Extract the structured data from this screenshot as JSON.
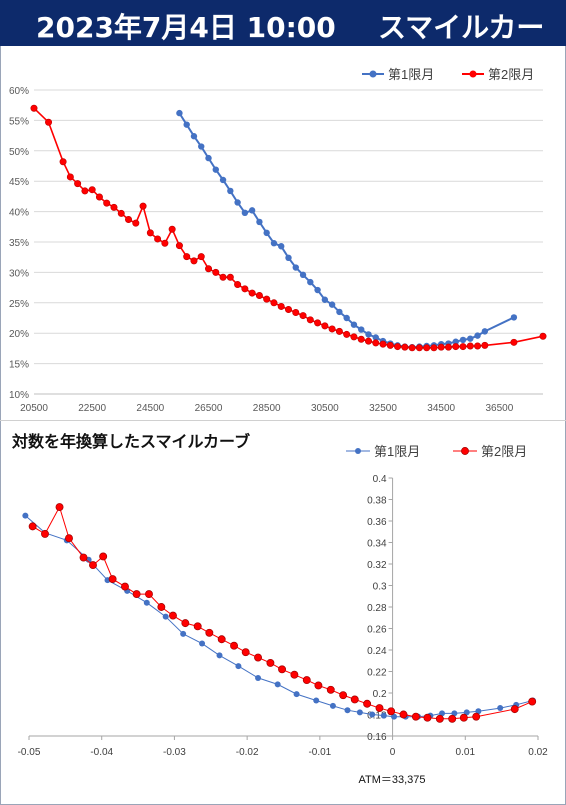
{
  "header": {
    "date": "2023年7月4日 10:00",
    "title": "スマイルカーブ"
  },
  "colors": {
    "series1": "#4472c4",
    "series2": "#ff0000",
    "header_bg": "#0d2a6b"
  },
  "chart_data": [
    {
      "type": "line",
      "title": "",
      "legend_position": "top-right",
      "xlim": [
        20500,
        38000
      ],
      "ylim": [
        0.1,
        0.6
      ],
      "x_ticks": [
        20500,
        22500,
        24500,
        26500,
        28500,
        30500,
        32500,
        34500,
        36500
      ],
      "x_tick_labels": [
        "20500",
        "22500",
        "24500",
        "26500",
        "28500",
        "30500",
        "32500",
        "34500",
        "36500"
      ],
      "y_ticks": [
        0.1,
        0.15,
        0.2,
        0.25,
        0.3,
        0.35,
        0.4,
        0.45,
        0.5,
        0.55,
        0.6
      ],
      "y_tick_labels": [
        "10%",
        "15%",
        "20%",
        "25%",
        "30%",
        "35%",
        "40%",
        "45%",
        "50%",
        "55%",
        "60%"
      ],
      "grid": true,
      "series": [
        {
          "name": "第1限月",
          "x": [
            25500,
            25750,
            26000,
            26250,
            26500,
            26750,
            27000,
            27250,
            27500,
            27750,
            28000,
            28250,
            28500,
            28750,
            29000,
            29250,
            29500,
            29750,
            30000,
            30250,
            30500,
            30750,
            31000,
            31250,
            31500,
            31750,
            32000,
            32250,
            32500,
            32750,
            33000,
            33250,
            33500,
            33750,
            34000,
            34250,
            34500,
            34750,
            35000,
            35250,
            35500,
            35750,
            36000,
            37000
          ],
          "y": [
            0.562,
            0.543,
            0.524,
            0.507,
            0.488,
            0.469,
            0.452,
            0.434,
            0.415,
            0.398,
            0.402,
            0.383,
            0.365,
            0.348,
            0.343,
            0.324,
            0.308,
            0.296,
            0.284,
            0.271,
            0.255,
            0.247,
            0.235,
            0.225,
            0.214,
            0.206,
            0.198,
            0.193,
            0.187,
            0.183,
            0.18,
            0.178,
            0.177,
            0.178,
            0.179,
            0.18,
            0.182,
            0.183,
            0.186,
            0.189,
            0.191,
            0.196,
            0.203,
            0.226
          ]
        },
        {
          "name": "第2限月",
          "x": [
            20500,
            21000,
            21500,
            21750,
            22000,
            22250,
            22500,
            22750,
            23000,
            23250,
            23500,
            23750,
            24000,
            24250,
            24500,
            24750,
            25000,
            25250,
            25500,
            25750,
            26000,
            26250,
            26500,
            26750,
            27000,
            27250,
            27500,
            27750,
            28000,
            28250,
            28500,
            28750,
            29000,
            29250,
            29500,
            29750,
            30000,
            30250,
            30500,
            30750,
            31000,
            31250,
            31500,
            31750,
            32000,
            32250,
            32500,
            32750,
            33000,
            33250,
            33500,
            33750,
            34000,
            34250,
            34500,
            34750,
            35000,
            35250,
            35500,
            35750,
            36000,
            37000,
            38000
          ],
          "y": [
            0.57,
            0.547,
            0.482,
            0.457,
            0.446,
            0.434,
            0.436,
            0.424,
            0.414,
            0.407,
            0.397,
            0.387,
            0.381,
            0.409,
            0.365,
            0.355,
            0.348,
            0.371,
            0.344,
            0.326,
            0.319,
            0.326,
            0.306,
            0.3,
            0.292,
            0.292,
            0.28,
            0.273,
            0.266,
            0.262,
            0.256,
            0.25,
            0.244,
            0.239,
            0.234,
            0.229,
            0.222,
            0.217,
            0.212,
            0.207,
            0.203,
            0.198,
            0.194,
            0.19,
            0.187,
            0.184,
            0.182,
            0.18,
            0.178,
            0.177,
            0.176,
            0.176,
            0.176,
            0.176,
            0.177,
            0.177,
            0.178,
            0.178,
            0.179,
            0.179,
            0.18,
            0.185,
            0.195
          ]
        }
      ]
    },
    {
      "type": "line",
      "title": "対数を年換算したスマイルカーブ",
      "legend_position": "top-right",
      "xlim": [
        -0.05,
        0.02
      ],
      "ylim": [
        0.16,
        0.4
      ],
      "x_ticks": [
        -0.05,
        -0.04,
        -0.03,
        -0.02,
        -0.01,
        0,
        0.01,
        0.02
      ],
      "x_tick_labels": [
        "-0.05",
        "-0.04",
        "-0.03",
        "-0.02",
        "-0.01",
        "0",
        "0.01",
        "0.02"
      ],
      "y_ticks": [
        0.16,
        0.18,
        0.2,
        0.22,
        0.24,
        0.26,
        0.28,
        0.3,
        0.32,
        0.34,
        0.36,
        0.38,
        0.4
      ],
      "y_tick_labels": [
        "0.16",
        "0.18",
        "0.2",
        "0.22",
        "0.24",
        "0.26",
        "0.28",
        "0.3",
        "0.32",
        "0.34",
        "0.36",
        "0.38",
        "0.4"
      ],
      "grid": false,
      "annotation": "ATM＝33,375",
      "series": [
        {
          "name": "第1限月",
          "x": [
            -0.0505,
            -0.0478,
            -0.0448,
            -0.0418,
            -0.0392,
            -0.0365,
            -0.0338,
            -0.0312,
            -0.0288,
            -0.0262,
            -0.0238,
            -0.0212,
            -0.0185,
            -0.0158,
            -0.0132,
            -0.0105,
            -0.0082,
            -0.0062,
            -0.0045,
            -0.0028,
            -0.0012,
            0.0002,
            0.0018,
            0.0035,
            0.0052,
            0.0068,
            0.0085,
            0.0102,
            0.0118,
            0.0148,
            0.017,
            0.0193
          ],
          "y": [
            0.365,
            0.349,
            0.342,
            0.324,
            0.305,
            0.295,
            0.284,
            0.271,
            0.255,
            0.246,
            0.235,
            0.225,
            0.214,
            0.208,
            0.199,
            0.193,
            0.188,
            0.184,
            0.182,
            0.18,
            0.179,
            0.178,
            0.178,
            0.178,
            0.179,
            0.181,
            0.181,
            0.182,
            0.183,
            0.186,
            0.189,
            0.193
          ]
        },
        {
          "name": "第2限月",
          "x": [
            -0.0495,
            -0.0478,
            -0.0458,
            -0.0445,
            -0.0425,
            -0.0412,
            -0.0398,
            -0.0385,
            -0.0368,
            -0.0352,
            -0.0335,
            -0.0318,
            -0.0302,
            -0.0285,
            -0.0268,
            -0.0252,
            -0.0235,
            -0.0218,
            -0.0202,
            -0.0185,
            -0.0168,
            -0.0152,
            -0.0135,
            -0.0118,
            -0.0102,
            -0.0085,
            -0.0068,
            -0.0052,
            -0.0035,
            -0.0018,
            -0.0002,
            0.0015,
            0.0032,
            0.0048,
            0.0065,
            0.0082,
            0.0098,
            0.0115,
            0.0168,
            0.0192
          ],
          "y": [
            0.355,
            0.348,
            0.373,
            0.344,
            0.326,
            0.319,
            0.327,
            0.306,
            0.299,
            0.292,
            0.292,
            0.28,
            0.272,
            0.265,
            0.262,
            0.256,
            0.25,
            0.244,
            0.238,
            0.233,
            0.228,
            0.222,
            0.217,
            0.212,
            0.207,
            0.203,
            0.198,
            0.194,
            0.19,
            0.186,
            0.183,
            0.18,
            0.178,
            0.177,
            0.176,
            0.176,
            0.177,
            0.178,
            0.185,
            0.192
          ]
        }
      ]
    }
  ]
}
